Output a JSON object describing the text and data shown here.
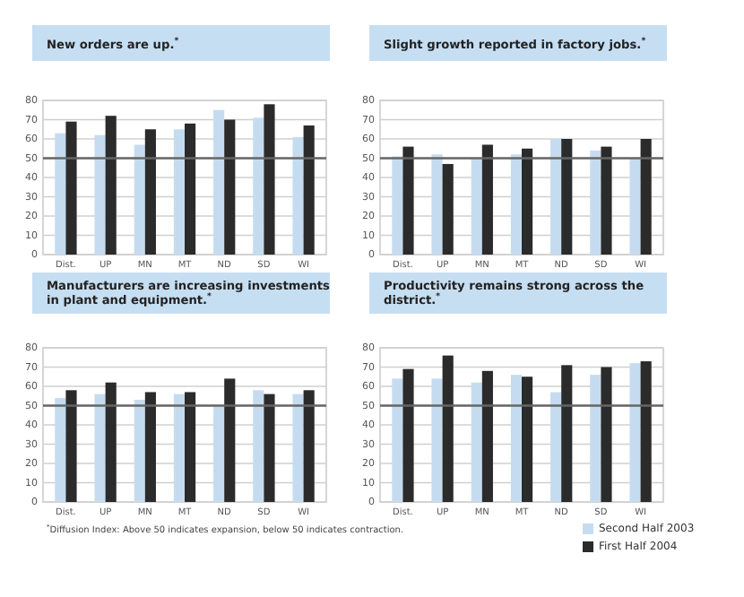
{
  "chart_data": [
    {
      "type": "bar",
      "title": "New orders are up.$^{*}$",
      "categories": [
        "Dist.",
        "UP",
        "MN",
        "MT",
        "ND",
        "SD",
        "WI"
      ],
      "series": [
        {
          "color": "#c5dcf0",
          "values": [
            63,
            62,
            57,
            65,
            75,
            71,
            61
          ]
        },
        {
          "color": "#2b2b2b",
          "values": [
            69,
            72,
            65,
            68,
            70,
            78,
            67
          ]
        }
      ],
      "ylim": [
        0,
        80
      ],
      "yticks": [
        0,
        10,
        20,
        30,
        40,
        50,
        60,
        70,
        80
      ],
      "grid": "y",
      "ref_lines": [
        {
          "axis": "y",
          "value": 50,
          "color": "#666666"
        }
      ]
    },
    {
      "type": "bar",
      "title": "Slight growth reported in factory jobs.$^{*}$",
      "categories": [
        "Dist.",
        "UP",
        "MN",
        "MT",
        "ND",
        "SD",
        "WI"
      ],
      "series": [
        {
          "color": "#c5dcf0",
          "values": [
            51,
            52,
            50,
            52,
            60,
            54,
            50
          ]
        },
        {
          "color": "#2b2b2b",
          "values": [
            56,
            47,
            57,
            55,
            60,
            56,
            60
          ]
        }
      ],
      "ylim": [
        0,
        80
      ],
      "yticks": [
        0,
        10,
        20,
        30,
        40,
        50,
        60,
        70,
        80
      ],
      "grid": "y",
      "ref_lines": [
        {
          "axis": "y",
          "value": 50,
          "color": "#666666"
        }
      ]
    },
    {
      "type": "bar",
      "title": "Manufacturers are increasing investments in plant and equipment.$^{*}$",
      "categories": [
        "Dist.",
        "UP",
        "MN",
        "MT",
        "ND",
        "SD",
        "WI"
      ],
      "series": [
        {
          "color": "#c5dcf0",
          "values": [
            54,
            56,
            53,
            56,
            50,
            58,
            56
          ]
        },
        {
          "color": "#2b2b2b",
          "values": [
            58,
            62,
            57,
            57,
            64,
            56,
            58
          ]
        }
      ],
      "ylim": [
        0,
        80
      ],
      "yticks": [
        0,
        10,
        20,
        30,
        40,
        50,
        60,
        70,
        80
      ],
      "grid": "y",
      "ref_lines": [
        {
          "axis": "y",
          "value": 50,
          "color": "#666666"
        }
      ]
    },
    {
      "type": "bar",
      "title": "Productivity remains strong across the district.$^{*}$",
      "categories": [
        "Dist.",
        "UP",
        "MN",
        "MT",
        "ND",
        "SD",
        "WI"
      ],
      "series": [
        {
          "name": "Second Half 2003",
          "color": "#c5dcf0",
          "values": [
            64,
            64,
            62,
            66,
            57,
            66,
            72
          ]
        },
        {
          "name": "First Half 2004",
          "color": "#2b2b2b",
          "values": [
            69,
            76,
            68,
            65,
            71,
            70,
            73
          ]
        }
      ],
      "ylim": [
        0,
        80
      ],
      "yticks": [
        0,
        10,
        20,
        30,
        40,
        50,
        60,
        70,
        80
      ],
      "grid": "y",
      "ref_lines": [
        {
          "axis": "y",
          "value": 50,
          "color": "#666666"
        }
      ],
      "legend": "bottom right",
      "annotations": [
        "$^{*}$Diffusion Index: Above 50 indicates expansion, below 50 indicates contraction."
      ]
    }
  ]
}
